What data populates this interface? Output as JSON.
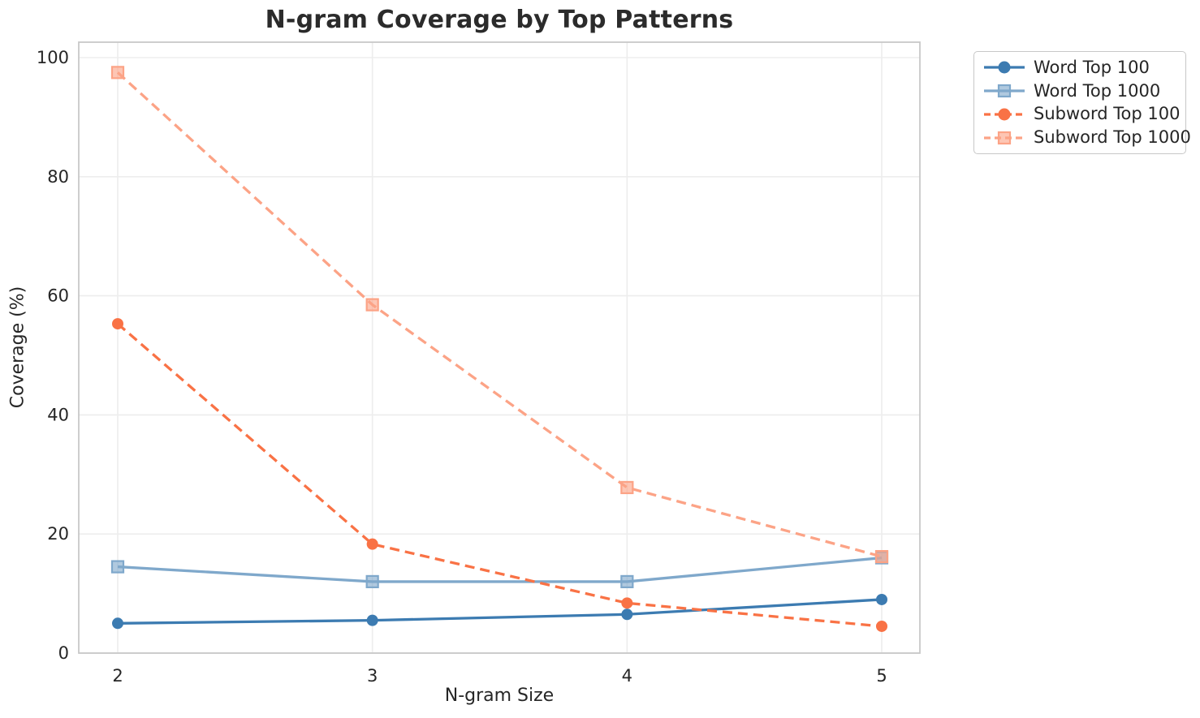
{
  "chart_data": {
    "type": "line",
    "title": "N-gram Coverage by Top Patterns",
    "xlabel": "N-gram Size",
    "ylabel": "Coverage (%)",
    "x": [
      2,
      3,
      4,
      5
    ],
    "xtick_labels": [
      "2",
      "3",
      "4",
      "5"
    ],
    "yticks": [
      0,
      20,
      40,
      60,
      80,
      100
    ],
    "xlim": [
      1.85,
      5.15
    ],
    "ylim": [
      0,
      102.6
    ],
    "grid": true,
    "legend_position": "outside-upper-right",
    "series": [
      {
        "name": "Word Top 100",
        "color": "#3c7bb1",
        "marker": "circle",
        "dash": "solid",
        "values": [
          5.0,
          5.5,
          6.5,
          9.0
        ]
      },
      {
        "name": "Word Top 1000",
        "color": "#7fa8cb",
        "marker": "square",
        "dash": "solid",
        "values": [
          14.5,
          12.0,
          12.0,
          16.0
        ]
      },
      {
        "name": "Subword Top 100",
        "color": "#f97245",
        "marker": "circle",
        "dash": "dashed",
        "values": [
          55.3,
          18.3,
          8.4,
          4.5
        ]
      },
      {
        "name": "Subword Top 1000",
        "color": "#fca386",
        "marker": "square",
        "dash": "dashed",
        "values": [
          97.5,
          58.5,
          27.8,
          16.2
        ]
      }
    ]
  },
  "colors": {
    "background": "#ffffff",
    "grid": "#ededed",
    "spine": "#c8c8c8",
    "text": "#262626",
    "title": "#2b2b2b",
    "legend_border": "#c8c8c8"
  }
}
